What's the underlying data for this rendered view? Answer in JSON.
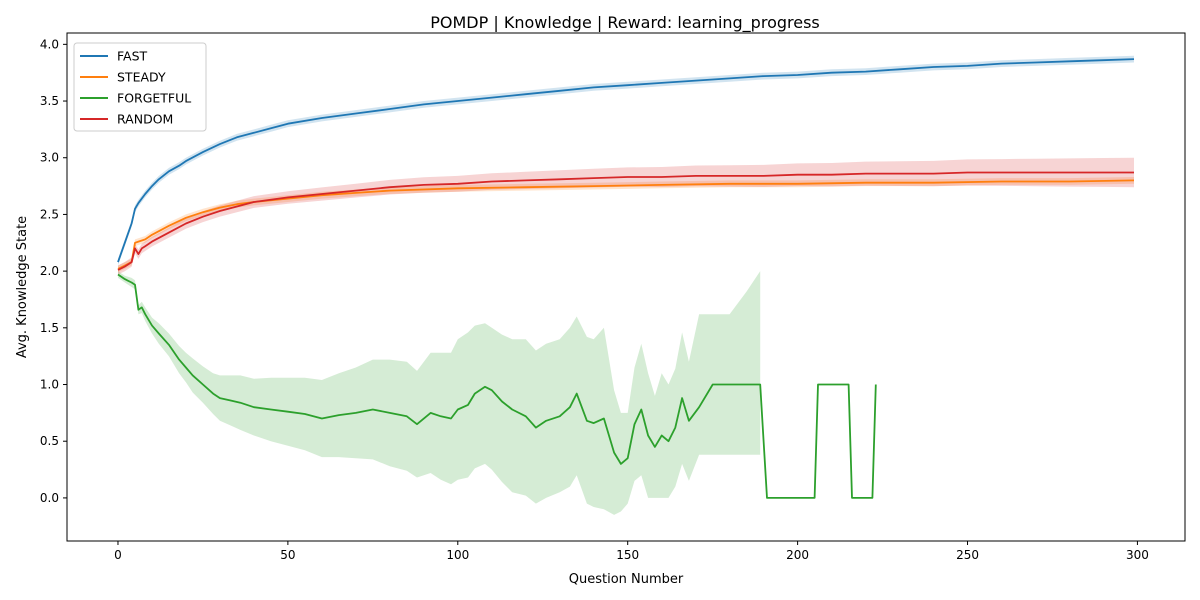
{
  "chart_data": {
    "type": "line",
    "title": "POMDP | Knowledge | Reward: learning_progress",
    "xlabel": "Question Number",
    "ylabel": "Avg. Knowledge State",
    "xlim": [
      -15,
      314
    ],
    "ylim": [
      -0.38,
      4.1
    ],
    "xticks": [
      0,
      50,
      100,
      150,
      200,
      250,
      300
    ],
    "yticks": [
      0.0,
      0.5,
      1.0,
      1.5,
      2.0,
      2.5,
      3.0,
      3.5,
      4.0
    ],
    "xtick_labels": [
      "0",
      "50",
      "100",
      "150",
      "200",
      "250",
      "300"
    ],
    "ytick_labels": [
      "0.0",
      "0.5",
      "1.0",
      "1.5",
      "2.0",
      "2.5",
      "3.0",
      "3.5",
      "4.0"
    ],
    "grid": false,
    "legend_position": "top-left",
    "series": [
      {
        "name": "FAST",
        "color": "#1f77b4",
        "x": [
          0,
          2,
          4,
          5,
          6,
          8,
          10,
          12,
          15,
          18,
          20,
          25,
          30,
          35,
          40,
          45,
          50,
          60,
          70,
          80,
          90,
          100,
          110,
          120,
          130,
          140,
          150,
          160,
          170,
          180,
          190,
          200,
          210,
          220,
          230,
          240,
          250,
          260,
          270,
          280,
          290,
          299
        ],
        "mean": [
          2.08,
          2.25,
          2.42,
          2.55,
          2.6,
          2.68,
          2.75,
          2.81,
          2.88,
          2.93,
          2.97,
          3.05,
          3.12,
          3.18,
          3.22,
          3.26,
          3.3,
          3.35,
          3.39,
          3.43,
          3.47,
          3.5,
          3.53,
          3.56,
          3.59,
          3.62,
          3.64,
          3.66,
          3.68,
          3.7,
          3.72,
          3.73,
          3.75,
          3.76,
          3.78,
          3.8,
          3.81,
          3.83,
          3.84,
          3.85,
          3.86,
          3.87
        ],
        "band": 0.03
      },
      {
        "name": "STEADY",
        "color": "#ff7f0e",
        "x": [
          0,
          2,
          4,
          5,
          6,
          8,
          10,
          15,
          20,
          25,
          30,
          35,
          40,
          50,
          60,
          70,
          80,
          100,
          120,
          140,
          160,
          180,
          200,
          220,
          240,
          260,
          280,
          299
        ],
        "mean": [
          2.02,
          2.05,
          2.08,
          2.25,
          2.26,
          2.28,
          2.32,
          2.4,
          2.47,
          2.52,
          2.56,
          2.59,
          2.61,
          2.64,
          2.67,
          2.69,
          2.71,
          2.73,
          2.74,
          2.75,
          2.76,
          2.77,
          2.77,
          2.78,
          2.78,
          2.79,
          2.79,
          2.8
        ],
        "band": 0.03
      },
      {
        "name": "FORGETFUL",
        "color": "#2ca02c",
        "x": [
          0,
          2,
          4,
          5,
          6,
          7,
          8,
          10,
          12,
          15,
          18,
          20,
          22,
          25,
          28,
          30,
          33,
          36,
          40,
          45,
          50,
          55,
          60,
          65,
          70,
          75,
          80,
          85,
          88,
          92,
          95,
          98,
          100,
          103,
          105,
          108,
          110,
          113,
          116,
          120,
          123,
          126,
          130,
          133,
          135,
          138,
          140,
          143,
          146,
          148,
          150,
          152,
          154,
          156,
          158,
          160,
          162,
          164,
          166,
          168,
          171,
          175,
          180,
          185,
          189,
          191,
          195,
          200,
          205,
          206,
          210,
          215,
          216,
          220,
          222,
          223
        ],
        "mean": [
          1.97,
          1.93,
          1.9,
          1.88,
          1.66,
          1.68,
          1.62,
          1.52,
          1.45,
          1.35,
          1.22,
          1.15,
          1.08,
          1.0,
          0.92,
          0.88,
          0.86,
          0.84,
          0.8,
          0.78,
          0.76,
          0.74,
          0.7,
          0.73,
          0.75,
          0.78,
          0.75,
          0.72,
          0.65,
          0.75,
          0.72,
          0.7,
          0.78,
          0.82,
          0.92,
          0.98,
          0.95,
          0.85,
          0.78,
          0.72,
          0.62,
          0.68,
          0.72,
          0.8,
          0.92,
          0.68,
          0.66,
          0.7,
          0.4,
          0.3,
          0.35,
          0.65,
          0.78,
          0.55,
          0.45,
          0.55,
          0.5,
          0.62,
          0.88,
          0.68,
          0.8,
          1.0,
          1.0,
          1.0,
          1.0,
          0.0,
          0.0,
          0.0,
          0.0,
          1.0,
          1.0,
          1.0,
          0.0,
          0.0,
          0.0,
          1.0
        ],
        "lower": [
          1.94,
          1.9,
          1.86,
          1.84,
          1.62,
          1.63,
          1.56,
          1.45,
          1.36,
          1.25,
          1.1,
          1.02,
          0.93,
          0.84,
          0.74,
          0.68,
          0.64,
          0.6,
          0.55,
          0.5,
          0.46,
          0.42,
          0.36,
          0.36,
          0.35,
          0.34,
          0.28,
          0.24,
          0.18,
          0.22,
          0.16,
          0.12,
          0.16,
          0.18,
          0.26,
          0.3,
          0.25,
          0.14,
          0.05,
          0.02,
          -0.05,
          0.0,
          0.05,
          0.1,
          0.2,
          -0.05,
          -0.08,
          -0.1,
          -0.15,
          -0.12,
          -0.05,
          0.15,
          0.2,
          0.0,
          0.0,
          0.0,
          0.0,
          0.1,
          0.3,
          0.15,
          0.38,
          0.38,
          0.38,
          0.38,
          0.38,
          null,
          null,
          null,
          null,
          null,
          null,
          null,
          null,
          null,
          null,
          null
        ],
        "upper": [
          2.0,
          1.96,
          1.94,
          1.92,
          1.7,
          1.73,
          1.68,
          1.59,
          1.54,
          1.45,
          1.34,
          1.28,
          1.23,
          1.16,
          1.1,
          1.08,
          1.08,
          1.08,
          1.05,
          1.06,
          1.06,
          1.06,
          1.04,
          1.1,
          1.15,
          1.22,
          1.22,
          1.2,
          1.12,
          1.28,
          1.28,
          1.28,
          1.4,
          1.46,
          1.52,
          1.54,
          1.5,
          1.44,
          1.4,
          1.4,
          1.3,
          1.36,
          1.4,
          1.5,
          1.6,
          1.42,
          1.4,
          1.5,
          0.95,
          0.75,
          0.75,
          1.15,
          1.36,
          1.1,
          0.9,
          1.1,
          1.0,
          1.14,
          1.46,
          1.2,
          1.62,
          1.62,
          1.62,
          1.82,
          2.0,
          null,
          null,
          null,
          null,
          null,
          null,
          null,
          null,
          null,
          null,
          null
        ]
      },
      {
        "name": "RANDOM",
        "color": "#d62728",
        "x": [
          0,
          2,
          4,
          5,
          6,
          7,
          8,
          10,
          15,
          20,
          25,
          30,
          35,
          40,
          50,
          60,
          70,
          80,
          90,
          100,
          110,
          120,
          130,
          140,
          150,
          160,
          170,
          180,
          190,
          200,
          210,
          220,
          230,
          240,
          250,
          260,
          270,
          280,
          290,
          299
        ],
        "mean": [
          2.01,
          2.04,
          2.08,
          2.2,
          2.15,
          2.2,
          2.22,
          2.26,
          2.34,
          2.42,
          2.48,
          2.53,
          2.57,
          2.61,
          2.65,
          2.68,
          2.71,
          2.74,
          2.76,
          2.77,
          2.79,
          2.8,
          2.81,
          2.82,
          2.83,
          2.83,
          2.84,
          2.84,
          2.84,
          2.85,
          2.85,
          2.86,
          2.86,
          2.86,
          2.87,
          2.87,
          2.87,
          2.87,
          2.87,
          2.87
        ],
        "band_start": 0.04,
        "band_end": 0.13
      }
    ]
  }
}
